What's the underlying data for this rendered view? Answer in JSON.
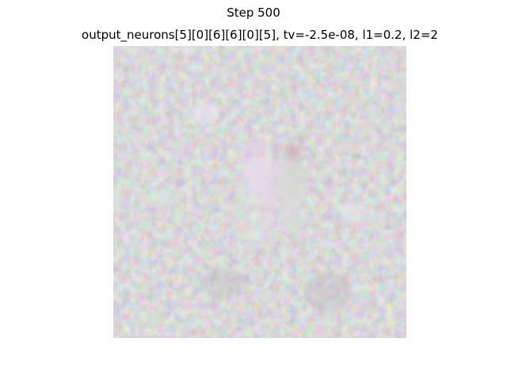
{
  "figure": {
    "suptitle": "Step 500",
    "axes_title": "output_neurons[5][0][6][6][0][5], tv=-2.5e-08, l1=0.2, l2=2"
  },
  "image": {
    "description_name": "feature-visualization-image",
    "background_color": "#c6c4c5",
    "accent_colors": [
      "#e3c4df",
      "#c7e3c8",
      "#d6d9e6",
      "#b9b6b8"
    ]
  }
}
